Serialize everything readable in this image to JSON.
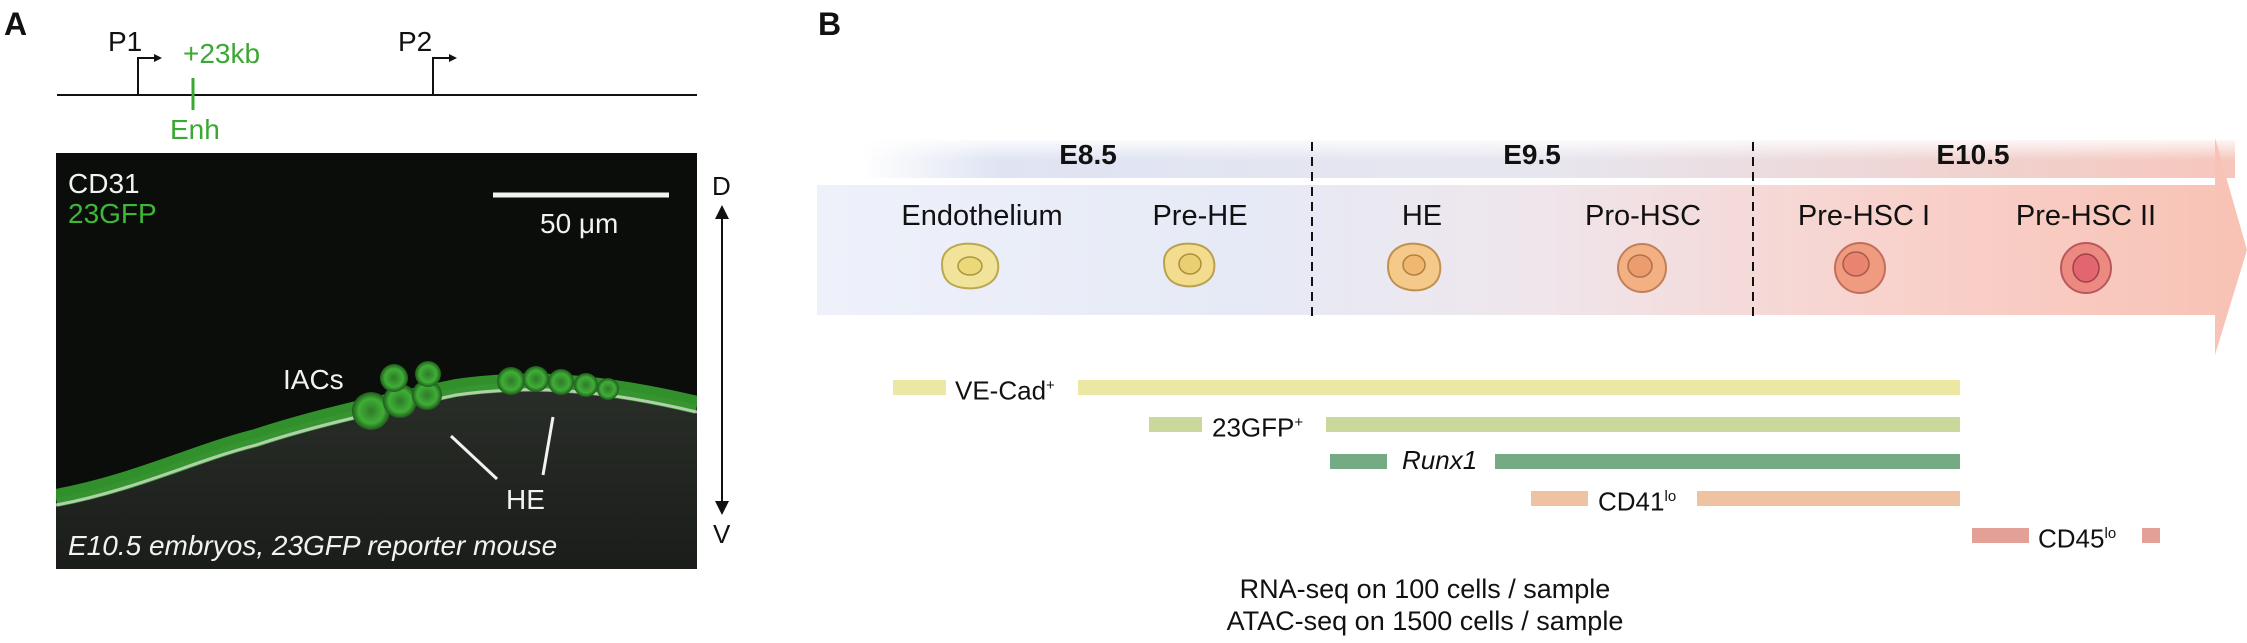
{
  "panel_a": {
    "letter": "A",
    "track": {
      "p1_label": "P1",
      "p2_label": "P2",
      "enhancer_distance": "+23kb",
      "enhancer_label": "Enh"
    },
    "micrograph": {
      "channel_1": "CD31",
      "channel_2": "23GFP",
      "scale_bar_label": "50 μm",
      "iacs_label": "IACs",
      "he_label": "HE",
      "caption": "E10.5 embryos, 23GFP reporter mouse"
    },
    "axis": {
      "top": "D",
      "bottom": "V"
    }
  },
  "panel_b": {
    "letter": "B",
    "stages": [
      "E8.5",
      "E9.5",
      "E10.5"
    ],
    "cells": [
      {
        "name": "Endothelium",
        "fill": "#f1e49a",
        "stroke": "#b9a84e"
      },
      {
        "name": "Pre-HE",
        "fill": "#f4dc8e",
        "stroke": "#b9a04e"
      },
      {
        "name": "HE",
        "fill": "#f5c98a",
        "stroke": "#c09050"
      },
      {
        "name": "Pro-HSC",
        "fill": "#f3b083",
        "stroke": "#c0805a"
      },
      {
        "name": "Pre-HSC I",
        "fill": "#f09b80",
        "stroke": "#c06f5c"
      },
      {
        "name": "Pre-HSC II",
        "fill": "#ec8a82",
        "stroke": "#b9585c"
      }
    ],
    "markers": [
      {
        "label": "VE-Cad",
        "sup": "+",
        "italic": false,
        "color": "#ede7a4"
      },
      {
        "label": "23GFP",
        "sup": "+",
        "italic": false,
        "color": "#c9d99c"
      },
      {
        "label": "Runx1",
        "sup": "",
        "italic": true,
        "color": "#74aa84"
      },
      {
        "label": "CD41",
        "sup": "lo",
        "italic": false,
        "color": "#efc2a2"
      },
      {
        "label": "CD45",
        "sup": "lo",
        "italic": false,
        "color": "#e3a096"
      }
    ],
    "methods": [
      "RNA-seq on 100 cells / sample",
      "ATAC-seq on 1500 cells / sample"
    ]
  }
}
